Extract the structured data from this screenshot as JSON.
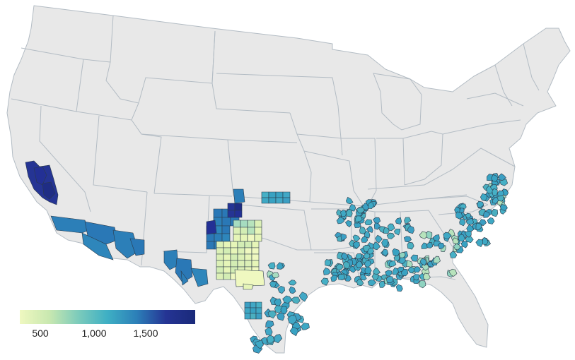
{
  "map": {
    "colorbar": {
      "ticks": [
        "500",
        "1,000",
        "1,500"
      ],
      "gradient": [
        "#eff8c0",
        "#c9e8b0",
        "#7ccbbb",
        "#3eafc4",
        "#2c7fb8",
        "#253494",
        "#1a2a7a"
      ]
    },
    "colors": {
      "land": "#e8e8e8",
      "border": "#b3bcc4",
      "background": "#ffffff"
    }
  }
}
